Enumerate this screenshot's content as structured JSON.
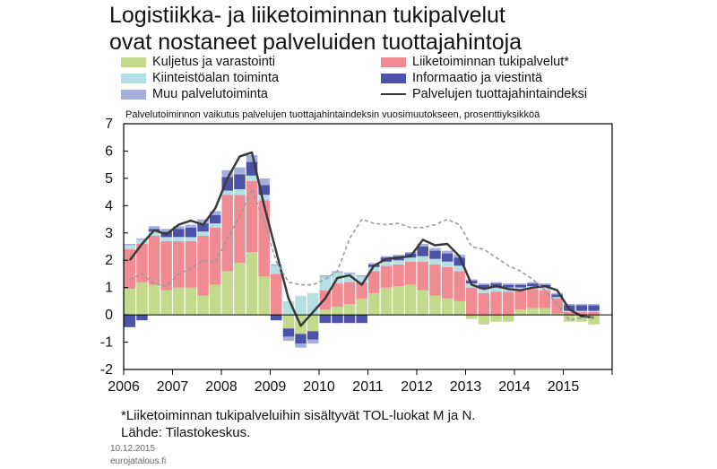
{
  "chart_data": {
    "type": "bar",
    "stacked": true,
    "title": [
      "Logistiikka- ja liiketoiminnan tukipalvelut",
      "ovat nostaneet palveluiden tuottajahintoja"
    ],
    "subtitle": "Palvelutoiminnon vaikutus palvelujen tuottajahintaindeksin vuosimuutokseen, prosenttiyksikköä",
    "ylim": [
      -2,
      7
    ],
    "yticks": [
      "-2",
      "-1",
      "0",
      "1",
      "2",
      "3",
      "4",
      "5",
      "6",
      "7"
    ],
    "xlim": [
      2006,
      2016
    ],
    "xticks": [
      "2006",
      "2007",
      "2008",
      "2009",
      "2010",
      "2011",
      "2012",
      "2013",
      "2014",
      "2015"
    ],
    "legend_position": "top",
    "x": [
      2006.0,
      2006.25,
      2006.5,
      2006.75,
      2007.0,
      2007.25,
      2007.5,
      2007.75,
      2008.0,
      2008.25,
      2008.5,
      2008.75,
      2009.0,
      2009.25,
      2009.5,
      2009.75,
      2010.0,
      2010.25,
      2010.5,
      2010.75,
      2011.0,
      2011.25,
      2011.5,
      2011.75,
      2012.0,
      2012.25,
      2012.5,
      2012.75,
      2013.0,
      2013.25,
      2013.5,
      2013.75,
      2014.0,
      2014.25,
      2014.5,
      2014.75,
      2015.0,
      2015.25,
      2015.5
    ],
    "series": [
      {
        "name": "Kuljetus ja varastointi",
        "color": "#c3d98b",
        "values": [
          0.95,
          1.2,
          1.1,
          0.9,
          1.0,
          1.0,
          0.7,
          1.1,
          1.6,
          1.9,
          2.3,
          1.4,
          0.0,
          -0.5,
          -0.7,
          -0.6,
          0.2,
          0.3,
          0.4,
          0.6,
          0.8,
          1.0,
          1.05,
          1.1,
          0.9,
          0.7,
          0.6,
          0.5,
          -0.15,
          -0.35,
          -0.25,
          -0.25,
          0.2,
          0.25,
          0.25,
          0.05,
          -0.25,
          -0.25,
          -0.35
        ]
      },
      {
        "name": "Liiketoiminnan tukipalvelut*",
        "color": "#f08a93",
        "values": [
          1.45,
          1.4,
          1.8,
          1.8,
          1.7,
          1.7,
          2.2,
          2.1,
          2.8,
          2.5,
          2.6,
          2.8,
          1.5,
          0.0,
          0.0,
          0.0,
          0.7,
          0.85,
          0.8,
          0.6,
          0.8,
          0.8,
          0.8,
          0.85,
          1.05,
          1.15,
          1.15,
          1.1,
          1.0,
          0.8,
          0.85,
          0.85,
          0.7,
          0.7,
          0.65,
          0.55,
          0.1,
          0.1,
          0.1
        ]
      },
      {
        "name": "Kiinteistöalan toiminta",
        "color": "#b4e0e4",
        "values": [
          0.15,
          0.15,
          0.15,
          0.15,
          0.15,
          0.15,
          0.15,
          0.15,
          0.15,
          0.2,
          0.2,
          0.2,
          0.3,
          0.5,
          0.7,
          0.8,
          0.5,
          0.4,
          0.3,
          0.2,
          0.15,
          0.15,
          0.15,
          0.15,
          0.2,
          0.2,
          0.2,
          0.2,
          0.15,
          0.15,
          0.15,
          0.15,
          0.1,
          0.1,
          0.1,
          0.05,
          0.05,
          0.05,
          0.05
        ]
      },
      {
        "name": "Informaatio ja viestintä",
        "color": "#4b52a8",
        "values": [
          -0.45,
          -0.2,
          0.1,
          0.2,
          0.3,
          0.35,
          0.3,
          0.3,
          0.5,
          0.55,
          0.5,
          0.35,
          -0.2,
          -0.3,
          -0.35,
          -0.3,
          -0.3,
          -0.3,
          -0.3,
          -0.3,
          0.1,
          0.15,
          0.15,
          0.15,
          0.35,
          0.3,
          0.3,
          0.3,
          0.1,
          0.15,
          0.15,
          0.1,
          0.1,
          0.1,
          0.1,
          0.1,
          0.2,
          0.2,
          0.2
        ]
      },
      {
        "name": "Muu palvelutoiminta",
        "color": "#a6aedd",
        "values": [
          0.05,
          0.05,
          0.1,
          0.1,
          0.1,
          0.1,
          0.15,
          0.15,
          0.25,
          0.25,
          0.25,
          0.25,
          0.05,
          -0.15,
          -0.15,
          -0.15,
          0.05,
          0.05,
          0.05,
          0.05,
          0.05,
          0.05,
          0.05,
          0.05,
          0.1,
          0.1,
          0.1,
          0.1,
          0.05,
          0.05,
          0.05,
          0.05,
          0.05,
          0.05,
          0.05,
          0.05,
          0.05,
          0.05,
          0.05
        ]
      },
      {
        "name": "Palvelujen tuottajahintaindeksi",
        "type": "line",
        "color": "#3a3a3a",
        "values": [
          2.0,
          2.6,
          3.1,
          2.95,
          3.3,
          3.45,
          3.3,
          3.9,
          5.0,
          5.8,
          5.95,
          4.0,
          2.3,
          0.6,
          -0.4,
          0.1,
          0.6,
          1.35,
          1.45,
          1.1,
          1.8,
          2.05,
          2.1,
          2.15,
          2.75,
          2.55,
          2.6,
          2.15,
          1.1,
          0.95,
          1.05,
          0.95,
          0.9,
          1.0,
          1.05,
          0.9,
          0.2,
          -0.05,
          -0.1
        ]
      },
      {
        "name": "",
        "type": "dashed",
        "color": "#9a9a9a",
        "values": [
          1.3,
          1.5,
          1.15,
          1.05,
          1.5,
          1.7,
          2.0,
          1.9,
          2.8,
          3.6,
          4.6,
          3.4,
          1.95,
          1.2,
          1.1,
          1.1,
          1.3,
          1.6,
          2.8,
          3.5,
          3.35,
          3.3,
          3.35,
          3.2,
          3.2,
          3.3,
          3.5,
          3.3,
          2.5,
          2.4,
          2.1,
          1.8,
          1.6,
          1.3,
          0.9,
          0.4,
          -0.2,
          -0.1,
          -0.1
        ]
      }
    ]
  },
  "legend": {
    "items": [
      {
        "label": "Kuljetus ja varastointi",
        "kind": "swatch",
        "color": "#c3d98b"
      },
      {
        "label": "Liiketoiminnan tukipalvelut*",
        "kind": "swatch",
        "color": "#f08a93"
      },
      {
        "label": "Kiinteistöalan toiminta",
        "kind": "swatch",
        "color": "#b4e0e4"
      },
      {
        "label": "Informaatio ja viestintä",
        "kind": "swatch",
        "color": "#4b52a8"
      },
      {
        "label": "Muu palvelutoiminta",
        "kind": "swatch",
        "color": "#a6aedd"
      },
      {
        "label": "Palvelujen tuottajahintaindeksi",
        "kind": "line",
        "color": "#333333"
      }
    ]
  },
  "footer": {
    "footnote": "*Liiketoiminnan tukipalveluihin sisältyvät TOL-luokat M ja N.",
    "source": "Lähde: Tilastokeskus.",
    "date": "10.12.2015",
    "site": "eurojatalous.fi"
  }
}
